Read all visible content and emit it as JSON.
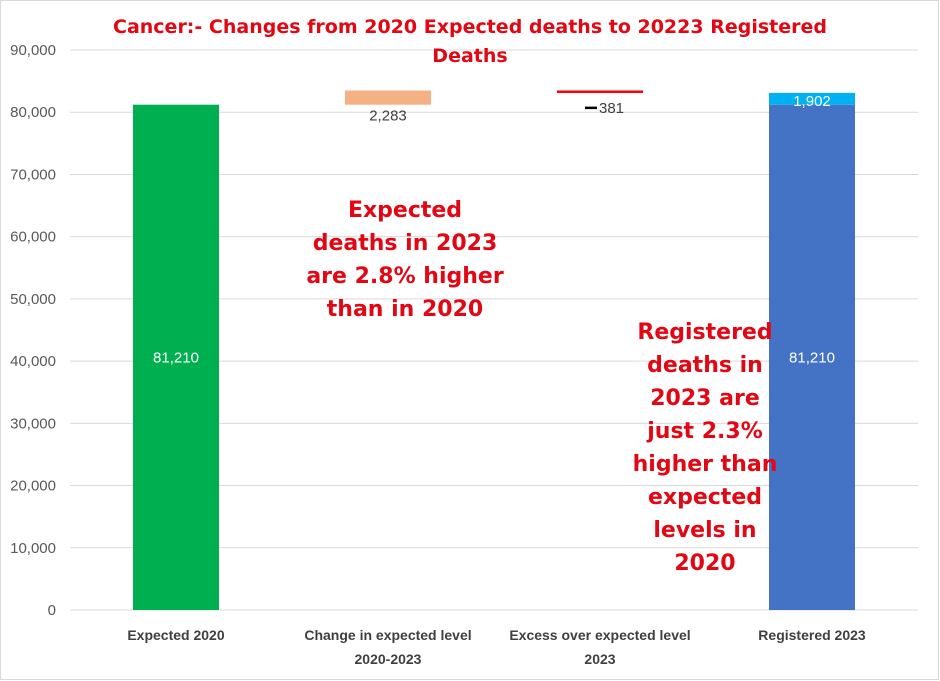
{
  "chart_data": {
    "type": "bar",
    "title_lines": [
      "Cancer:- Changes from 2020 Expected deaths to 20223 Registered",
      "Deaths"
    ],
    "categories": [
      [
        "Expected 2020"
      ],
      [
        "Change in expected level",
        "2020-2023"
      ],
      [
        "Excess over expected level",
        "2023"
      ],
      [
        "Registered 2023"
      ]
    ],
    "ylim": [
      0,
      90000
    ],
    "yticks": [
      "0",
      "10,000",
      "20,000",
      "30,000",
      "40,000",
      "50,000",
      "60,000",
      "70,000",
      "80,000",
      "90,000"
    ],
    "ytick_values": [
      0,
      10000,
      20000,
      30000,
      40000,
      50000,
      60000,
      70000,
      80000,
      90000
    ],
    "bars": [
      {
        "base": 0,
        "value": 81210,
        "label": "81,210",
        "color": "#00b050"
      },
      {
        "base": 81210,
        "value": 2283,
        "label": "2,283",
        "color": "#f4b183"
      },
      {
        "base": 83493,
        "value": -381,
        "label": "381",
        "color": "#ff0000"
      },
      {
        "base": 0,
        "value": 81210,
        "label": "81,210",
        "color": "#4472c4"
      },
      {
        "base": 81210,
        "value": 1902,
        "label": "1,902",
        "color": "#00b0f0"
      }
    ],
    "annotations": [
      [
        "Expected",
        "deaths in 2023",
        "are 2.8% higher",
        "than in 2020"
      ],
      [
        "Registered",
        "deaths in",
        "2023 are",
        "just 2.3%",
        "higher than",
        "expected",
        "levels in",
        "2020"
      ]
    ],
    "grid": true,
    "legend": "none"
  }
}
